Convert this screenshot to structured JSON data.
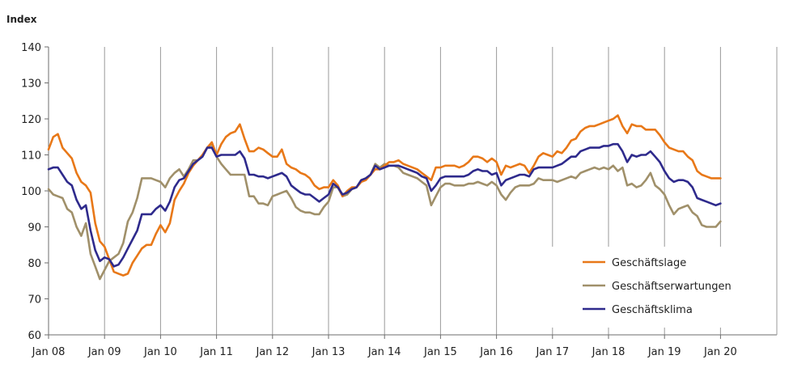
{
  "chart_data": {
    "type": "line",
    "ylabel": "Index",
    "ylim": [
      60,
      140
    ],
    "yticks": [
      "60",
      "70",
      "80",
      "90",
      "100",
      "110",
      "120",
      "130",
      "140"
    ],
    "xticks": [
      "Jan 08",
      "Jan 09",
      "Jan 10",
      "Jan 11",
      "Jan 12",
      "Jan 13",
      "Jan 14",
      "Jan 15",
      "Jan 16",
      "Jan 17",
      "Jan 18",
      "Jan 19",
      "Jan 20"
    ],
    "x_start": "2008-01",
    "x_end": "2020-01",
    "grid": "vertical",
    "legend_position": "bottom-right",
    "series": [
      {
        "name": "Geschäftslage",
        "color": "#E87818",
        "values": [
          111.5,
          115,
          115.8,
          112,
          110.5,
          109,
          105,
          102.5,
          101.5,
          99.5,
          91,
          86,
          84.5,
          81,
          77.5,
          77,
          76.5,
          77,
          80,
          82,
          84,
          85,
          85,
          88,
          90.5,
          88.5,
          91,
          97.5,
          100,
          102,
          105,
          107,
          108.5,
          110,
          112,
          113.5,
          110,
          113,
          115,
          116,
          116.5,
          118.5,
          114.5,
          111,
          111,
          112,
          111.5,
          110.5,
          109.5,
          109.5,
          111.5,
          107.5,
          106.5,
          106,
          105,
          104.5,
          103.5,
          101.5,
          100.5,
          101,
          101,
          103,
          101.5,
          98.5,
          100,
          101,
          101,
          102.5,
          103,
          104.5,
          106,
          106,
          107,
          108,
          108,
          108.5,
          107.5,
          107,
          106.5,
          106,
          105,
          104,
          103,
          106.5,
          106.5,
          107,
          107,
          107,
          106.5,
          107,
          108,
          109.5,
          109.5,
          109,
          108,
          109,
          108,
          104.5,
          107,
          106.5,
          107,
          107.5,
          107,
          105,
          107,
          109.5,
          110.5,
          110,
          109.5,
          111,
          110.5,
          112,
          114,
          114.5,
          116.5,
          117.5,
          118,
          118,
          118.5,
          119,
          119.5,
          120,
          121,
          118,
          116,
          118.5,
          118,
          118,
          117,
          117,
          117,
          115.5,
          113.5,
          112,
          111.5,
          111,
          111,
          109.5,
          108.5,
          105.5,
          104.5,
          104,
          103.5,
          103.5,
          103.5,
          103
        ],
        "note": "approximate monthly readings"
      },
      {
        "name": "Geschäftserwartungen",
        "color": "#A0906A",
        "values": [
          100.5,
          99,
          98.5,
          98,
          95,
          94,
          90,
          87.5,
          91,
          82.5,
          79,
          75.5,
          78,
          80.5,
          81.5,
          82.5,
          85.5,
          91.5,
          94,
          98,
          103.5,
          103.5,
          103.5,
          103,
          102.5,
          101,
          103.5,
          105,
          106,
          104,
          106,
          108.5,
          108.5,
          110,
          112,
          113,
          109.5,
          107.5,
          106,
          104.5,
          104.5,
          104.5,
          104.5,
          98.5,
          98.5,
          96.5,
          96.5,
          96,
          98.5,
          99,
          99.5,
          100,
          98,
          95.5,
          94.5,
          94,
          94,
          93.5,
          93.5,
          95.5,
          97,
          101,
          101,
          98.5,
          99,
          100.5,
          101,
          103,
          103.5,
          104.5,
          107.5,
          106.5,
          107.5,
          107,
          107,
          106.5,
          105,
          104.5,
          104,
          103.5,
          102.5,
          101.5,
          96,
          98.5,
          101,
          102,
          102,
          101.5,
          101.5,
          101.5,
          102,
          102,
          102.5,
          102,
          101.5,
          102.5,
          101.5,
          99,
          97.5,
          99.5,
          101,
          101.5,
          101.5,
          101.5,
          102,
          103.5,
          103,
          103,
          103,
          102.5,
          103,
          103.5,
          104,
          103.5,
          105,
          105.5,
          106,
          106.5,
          106,
          106.5,
          106,
          107,
          105.5,
          106.5,
          101.5,
          102,
          101,
          101.5,
          103,
          105,
          101.5,
          100.5,
          99,
          96,
          93.5,
          95,
          95.5,
          96,
          94,
          93,
          90.5,
          90,
          90,
          90,
          91.5,
          91.5
        ],
        "note": "approximate monthly readings"
      },
      {
        "name": "Geschäftsklima",
        "color": "#2E2A8C",
        "values": [
          106,
          106.5,
          106.5,
          104.5,
          102.5,
          101.5,
          97.5,
          95,
          96,
          89,
          83.5,
          80.5,
          81.5,
          81,
          79,
          79.5,
          81.5,
          84,
          86.5,
          89,
          93.5,
          93.5,
          93.5,
          95,
          96,
          94.5,
          97,
          101,
          103,
          103.5,
          105.5,
          107.5,
          108.5,
          109.5,
          112,
          112,
          109.5,
          110,
          110,
          110,
          110,
          111,
          109,
          104.5,
          104.5,
          104,
          104,
          103.5,
          104,
          104.5,
          105,
          104,
          101.5,
          100.5,
          99.5,
          99,
          99,
          98,
          97,
          98,
          99,
          102,
          101,
          99,
          99.5,
          100.5,
          101,
          103,
          103.5,
          104.5,
          107,
          106,
          106.5,
          107,
          107,
          107,
          106.5,
          106,
          105.5,
          105,
          104,
          103.5,
          100,
          101.5,
          103.5,
          104,
          104,
          104,
          104,
          104,
          104.5,
          105.5,
          106,
          105.5,
          105.5,
          104.5,
          105,
          101.5,
          103,
          103.5,
          104,
          104.5,
          104.5,
          104,
          106,
          106.5,
          106.5,
          106.5,
          106.5,
          107,
          107.5,
          108.5,
          109.5,
          109.5,
          111,
          111.5,
          112,
          112,
          112,
          112.5,
          112.5,
          113,
          113,
          111,
          108,
          110,
          109.5,
          110,
          110,
          111,
          109.5,
          108,
          105.5,
          103.5,
          102.5,
          103,
          103,
          102.5,
          101,
          98,
          97.5,
          97,
          96.5,
          96,
          96.5,
          97,
          97
        ],
        "note": "approximate monthly readings"
      }
    ]
  }
}
